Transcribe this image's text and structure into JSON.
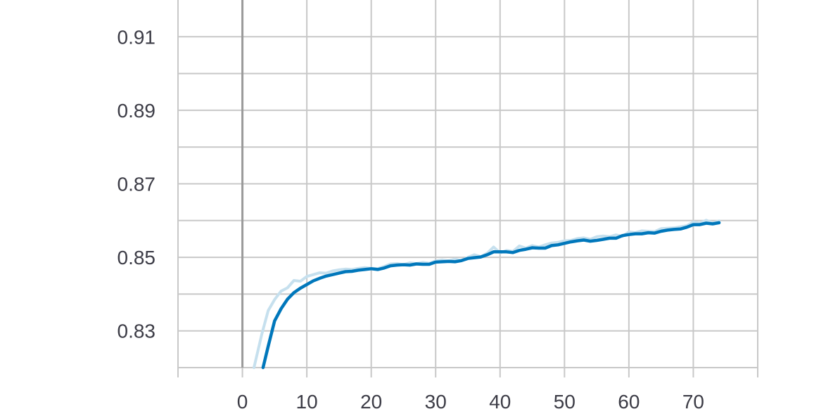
{
  "chart_data": {
    "type": "line",
    "title": "",
    "xlabel": "",
    "ylabel": "",
    "xlim": [
      -10,
      80
    ],
    "ylim": [
      0.82,
      0.92
    ],
    "x_ticks": [
      0,
      10,
      20,
      30,
      40,
      50,
      60,
      70
    ],
    "x_tick_labels": [
      "0",
      "10",
      "20",
      "30",
      "40",
      "50",
      "60",
      "70"
    ],
    "y_ticks": [
      0.83,
      0.85,
      0.87,
      0.89,
      0.91
    ],
    "y_tick_labels": [
      "0.83",
      "0.85",
      "0.87",
      "0.89",
      "0.91"
    ],
    "y_minor_ticks": [
      0.82,
      0.84,
      0.86,
      0.88,
      0.9
    ],
    "grid": true,
    "legend": "none",
    "colors": {
      "smoothed": "#0077bb",
      "raw": "#c6e0ee",
      "grid": "#c8c8c8",
      "zero_axis": "#9a9a9a",
      "text": "#3c3c46"
    },
    "series": [
      {
        "role": "raw",
        "x": [
          1.8,
          3,
          4,
          5,
          6,
          7,
          8,
          9,
          10,
          11,
          12,
          13,
          14,
          15,
          16,
          17,
          18,
          19,
          20,
          21,
          22,
          23,
          24,
          25,
          26,
          27,
          28,
          29,
          30,
          31,
          32,
          33,
          34,
          35,
          36,
          37,
          38,
          39,
          40,
          41,
          42,
          43,
          44,
          45,
          46,
          47,
          48,
          49,
          50,
          51,
          52,
          53,
          54,
          55,
          56,
          57,
          58,
          59,
          60,
          61,
          62,
          63,
          64,
          65,
          66,
          67,
          68,
          69,
          70,
          71,
          72,
          73,
          74
        ],
        "values": [
          0.82,
          0.829,
          0.8355,
          0.8385,
          0.8408,
          0.8417,
          0.8437,
          0.8435,
          0.8448,
          0.8453,
          0.8458,
          0.8457,
          0.8463,
          0.8466,
          0.8468,
          0.8467,
          0.847,
          0.8472,
          0.847,
          0.8469,
          0.8475,
          0.8482,
          0.8483,
          0.848,
          0.8485,
          0.8483,
          0.8486,
          0.8484,
          0.849,
          0.8493,
          0.849,
          0.8495,
          0.8491,
          0.85,
          0.8507,
          0.8502,
          0.8511,
          0.8528,
          0.8512,
          0.8519,
          0.8516,
          0.8531,
          0.8525,
          0.8532,
          0.8528,
          0.8534,
          0.8539,
          0.8541,
          0.8545,
          0.8546,
          0.8551,
          0.8553,
          0.8549,
          0.8556,
          0.8558,
          0.8556,
          0.8561,
          0.8557,
          0.8569,
          0.8567,
          0.8572,
          0.8571,
          0.857,
          0.8578,
          0.8579,
          0.858,
          0.8583,
          0.8586,
          0.8596,
          0.8593,
          0.8601,
          0.8594,
          0.8599
        ]
      },
      {
        "role": "smoothed",
        "x": [
          3.2,
          4,
          5,
          6,
          7,
          8,
          9,
          10,
          11,
          12,
          13,
          14,
          15,
          16,
          17,
          18,
          19,
          20,
          21,
          22,
          23,
          24,
          25,
          26,
          27,
          28,
          29,
          30,
          31,
          32,
          33,
          34,
          35,
          36,
          37,
          38,
          39,
          40,
          41,
          42,
          43,
          44,
          45,
          46,
          47,
          48,
          49,
          50,
          51,
          52,
          53,
          54,
          55,
          56,
          57,
          58,
          59,
          60,
          61,
          62,
          63,
          64,
          65,
          66,
          67,
          68,
          69,
          70,
          71,
          72,
          73,
          74
        ],
        "values": [
          0.82,
          0.8258,
          0.8327,
          0.836,
          0.8386,
          0.8404,
          0.8416,
          0.8426,
          0.8436,
          0.8443,
          0.8449,
          0.8453,
          0.8457,
          0.8461,
          0.8462,
          0.8465,
          0.8467,
          0.8469,
          0.8467,
          0.8471,
          0.8477,
          0.8479,
          0.848,
          0.8479,
          0.8482,
          0.8481,
          0.8481,
          0.8487,
          0.8488,
          0.8489,
          0.8488,
          0.8491,
          0.8497,
          0.8499,
          0.8501,
          0.8507,
          0.8515,
          0.8515,
          0.8515,
          0.8513,
          0.8519,
          0.8522,
          0.8526,
          0.8525,
          0.8525,
          0.8532,
          0.8534,
          0.8538,
          0.8542,
          0.8545,
          0.8547,
          0.8544,
          0.8546,
          0.8549,
          0.8552,
          0.8552,
          0.8559,
          0.8562,
          0.8564,
          0.8564,
          0.8567,
          0.8566,
          0.8571,
          0.8574,
          0.8576,
          0.8577,
          0.8582,
          0.8589,
          0.8589,
          0.8593,
          0.8591,
          0.8594
        ]
      }
    ]
  }
}
